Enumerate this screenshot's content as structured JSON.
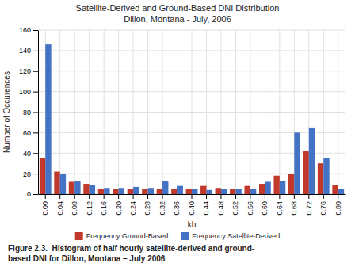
{
  "chart_data": {
    "type": "bar",
    "title": "Satellite-Derived and Ground-Based DNI Distribution",
    "subtitle": "Dillon, Montana - July, 2006",
    "x_label": "kb",
    "y_label": "Number of Occurences",
    "categories": [
      "0.00",
      "0.04",
      "0.08",
      "0.12",
      "0.16",
      "0.20",
      "0.24",
      "0.28",
      "0.32",
      "0.36",
      "0.40",
      "0.44",
      "0.48",
      "0.52",
      "0.56",
      "0.60",
      "0.64",
      "0.68",
      "0.72",
      "0.76",
      "0.80"
    ],
    "series": [
      {
        "name": "Frequency Ground-Based",
        "color": "#C0392B",
        "values": [
          35,
          22,
          12,
          10,
          5,
          5,
          5,
          5,
          5,
          5,
          5,
          8,
          6,
          5,
          8,
          10,
          18,
          20,
          42,
          30,
          9
        ]
      },
      {
        "name": "Frequency Satellite-Derived",
        "color": "#4472C4",
        "values": [
          146,
          20,
          13,
          9,
          6,
          6,
          7,
          6,
          13,
          8,
          5,
          4,
          5,
          5,
          5,
          12,
          13,
          60,
          65,
          35,
          5
        ]
      }
    ],
    "ylim": [
      0,
      160
    ],
    "yticks": [
      0,
      20,
      40,
      60,
      80,
      100,
      120,
      140,
      160
    ],
    "grid": true,
    "legend": "bottom",
    "annotations": [
      "Figure 2.3.  Histogram of half hourly satellite-derived and ground-",
      "based DNI for Dillon, Montana – July 2006"
    ]
  }
}
